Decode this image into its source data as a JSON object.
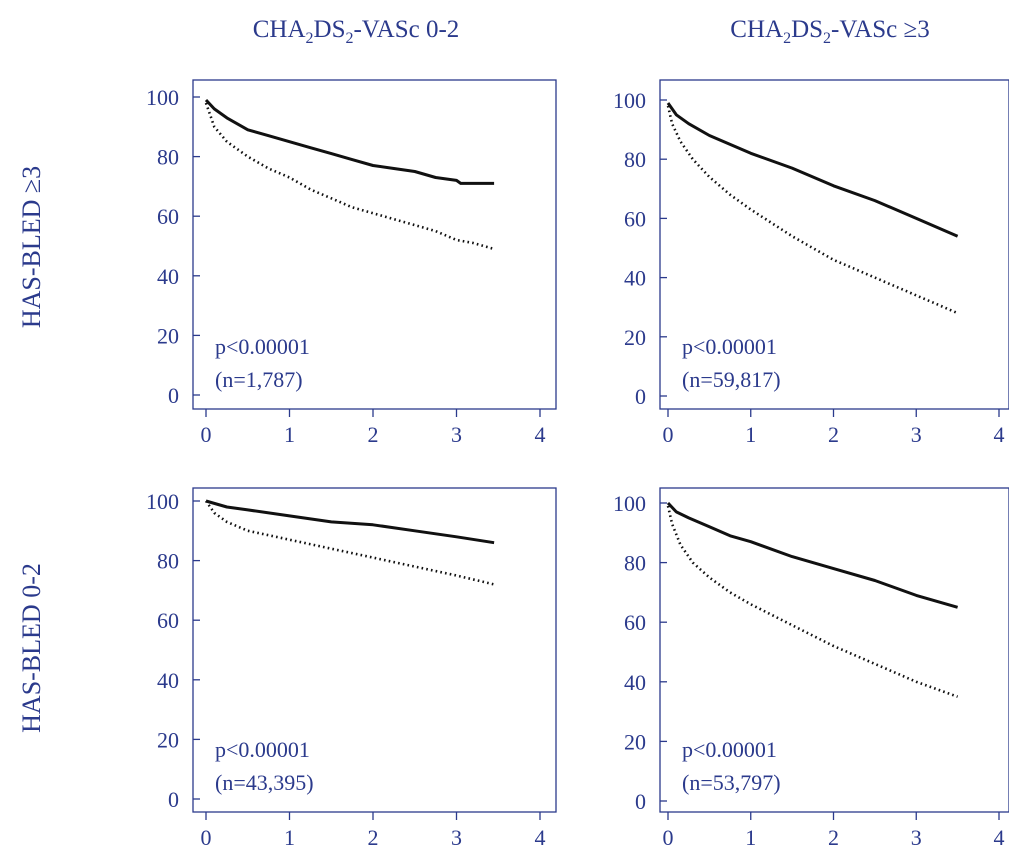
{
  "figure": {
    "column_headers": [
      {
        "base": "CHA",
        "sub1": "2",
        "mid": "DS",
        "sub2": "2",
        "rest": "-VASc 0-2"
      },
      {
        "base": "CHA",
        "sub1": "2",
        "mid": "DS",
        "sub2": "2",
        "rest": "-VASc ≥3"
      }
    ],
    "row_headers": [
      "HAS-BLED ≥3",
      "HAS-BLED 0-2"
    ],
    "colors": {
      "text": "#2b3a8c",
      "axis": "#2b3a8c",
      "curve": "#111111"
    }
  },
  "chart_data": [
    {
      "type": "line",
      "panel": "CHA2DS2-VASc 0-2 / HAS-BLED ≥3",
      "xlim": [
        0,
        4
      ],
      "ylim": [
        0,
        100
      ],
      "xticks": [
        "0",
        "1",
        "2",
        "3",
        "4"
      ],
      "yticks": [
        "0",
        "20",
        "40",
        "60",
        "80",
        "100"
      ],
      "annotation_p": "p<0.00001",
      "annotation_n": "(n=1,787)",
      "series": [
        {
          "style": "solid",
          "x": [
            0,
            0.1,
            0.25,
            0.5,
            0.75,
            1.0,
            1.25,
            1.5,
            1.75,
            2.0,
            2.25,
            2.5,
            2.75,
            3.0,
            3.05,
            3.25,
            3.45
          ],
          "y": [
            99,
            96,
            93,
            89,
            87,
            85,
            83,
            81,
            79,
            77,
            76,
            75,
            73,
            72,
            71,
            71,
            71
          ]
        },
        {
          "style": "dotted",
          "x": [
            0,
            0.1,
            0.25,
            0.5,
            0.75,
            1.0,
            1.25,
            1.5,
            1.75,
            2.0,
            2.25,
            2.5,
            2.75,
            3.0,
            3.2,
            3.45
          ],
          "y": [
            98,
            90,
            85,
            80,
            76,
            73,
            69,
            66,
            63,
            61,
            59,
            57,
            55,
            52,
            51,
            49
          ]
        }
      ]
    },
    {
      "type": "line",
      "panel": "CHA2DS2-VASc ≥3 / HAS-BLED ≥3",
      "xlim": [
        0,
        4
      ],
      "ylim": [
        0,
        100
      ],
      "xticks": [
        "0",
        "1",
        "2",
        "3",
        "4"
      ],
      "yticks": [
        "0",
        "20",
        "40",
        "60",
        "80",
        "100"
      ],
      "annotation_p": "p<0.00001",
      "annotation_n": "(n=59,817)",
      "series": [
        {
          "style": "solid",
          "x": [
            0,
            0.1,
            0.25,
            0.5,
            0.75,
            1.0,
            1.5,
            2.0,
            2.5,
            3.0,
            3.5
          ],
          "y": [
            99,
            95,
            92,
            88,
            85,
            82,
            77,
            71,
            66,
            60,
            54
          ]
        },
        {
          "style": "dotted",
          "x": [
            0,
            0.05,
            0.15,
            0.3,
            0.5,
            0.75,
            1.0,
            1.5,
            2.0,
            2.5,
            3.0,
            3.5
          ],
          "y": [
            98,
            92,
            86,
            80,
            74,
            68,
            63,
            54,
            46,
            40,
            34,
            28
          ]
        }
      ]
    },
    {
      "type": "line",
      "panel": "CHA2DS2-VASc 0-2 / HAS-BLED 0-2",
      "xlim": [
        0,
        4
      ],
      "ylim": [
        0,
        100
      ],
      "xticks": [
        "0",
        "1",
        "2",
        "3",
        "4"
      ],
      "yticks": [
        "0",
        "20",
        "40",
        "60",
        "80",
        "100"
      ],
      "annotation_p": "p<0.00001",
      "annotation_n": "(n=43,395)",
      "series": [
        {
          "style": "solid",
          "x": [
            0,
            0.25,
            0.5,
            1.0,
            1.5,
            2.0,
            2.5,
            3.0,
            3.45
          ],
          "y": [
            100,
            98,
            97,
            95,
            93,
            92,
            90,
            88,
            86
          ]
        },
        {
          "style": "dotted",
          "x": [
            0,
            0.1,
            0.25,
            0.5,
            1.0,
            1.5,
            2.0,
            2.5,
            3.0,
            3.45
          ],
          "y": [
            100,
            96,
            93,
            90,
            87,
            84,
            81,
            78,
            75,
            72
          ]
        }
      ]
    },
    {
      "type": "line",
      "panel": "CHA2DS2-VASc ≥3 / HAS-BLED 0-2",
      "xlim": [
        0,
        4
      ],
      "ylim": [
        0,
        100
      ],
      "xticks": [
        "0",
        "1",
        "2",
        "3",
        "4"
      ],
      "yticks": [
        "0",
        "20",
        "40",
        "60",
        "80",
        "100"
      ],
      "annotation_p": "p<0.00001",
      "annotation_n": "(n=53,797)",
      "series": [
        {
          "style": "solid",
          "x": [
            0,
            0.1,
            0.25,
            0.5,
            0.75,
            1.0,
            1.5,
            2.0,
            2.5,
            3.0,
            3.5
          ],
          "y": [
            100,
            97,
            95,
            92,
            89,
            87,
            82,
            78,
            74,
            69,
            65
          ]
        },
        {
          "style": "dotted",
          "x": [
            0,
            0.05,
            0.15,
            0.3,
            0.5,
            0.75,
            1.0,
            1.5,
            2.0,
            2.5,
            3.0,
            3.5
          ],
          "y": [
            99,
            93,
            86,
            80,
            75,
            70,
            66,
            59,
            52,
            46,
            40,
            35
          ]
        }
      ]
    }
  ]
}
